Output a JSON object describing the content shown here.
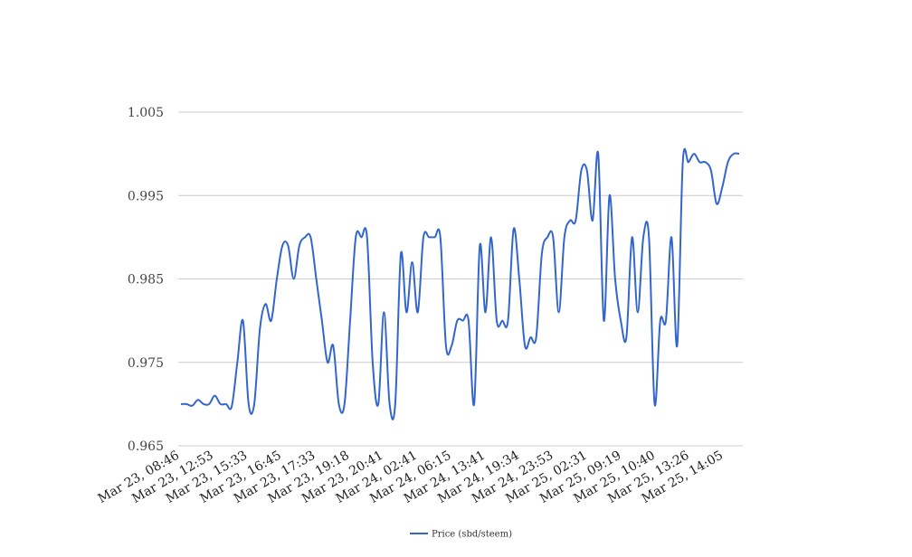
{
  "chart_data": {
    "type": "line",
    "title": "",
    "xlabel": "",
    "ylabel": "",
    "ylim": [
      0.965,
      1.005
    ],
    "yticks": [
      "0.965",
      "0.975",
      "0.985",
      "0.995",
      "1.005"
    ],
    "grid": true,
    "legend_position": "bottom-center",
    "x_tick_labels": [
      "Mar 23, 08:46",
      "Mar 23, 12:53",
      "Mar 23, 15:33",
      "Mar 23, 16:45",
      "Mar 23, 17:33",
      "Mar 23, 19:18",
      "Mar 23, 20:41",
      "Mar 24, 02:41",
      "Mar 24, 06:15",
      "Mar 24, 13:41",
      "Mar 24, 19:34",
      "Mar 24, 23:53",
      "Mar 25, 02:31",
      "Mar 25, 09:19",
      "Mar 25, 10:40",
      "Mar 25, 13:26",
      "Mar 25, 14:05"
    ],
    "series": [
      {
        "name": "Price (sbd/steem)",
        "color": "#3366cc",
        "values": [
          0.97,
          0.97,
          0.9698,
          0.9705,
          0.97,
          0.97,
          0.971,
          0.97,
          0.97,
          0.9697,
          0.975,
          0.98,
          0.97,
          0.97,
          0.979,
          0.982,
          0.98,
          0.985,
          0.989,
          0.989,
          0.985,
          0.989,
          0.99,
          0.99,
          0.985,
          0.98,
          0.975,
          0.977,
          0.97,
          0.97,
          0.98,
          0.99,
          0.99,
          0.99,
          0.975,
          0.97,
          0.981,
          0.97,
          0.97,
          0.988,
          0.981,
          0.987,
          0.981,
          0.99,
          0.99,
          0.99,
          0.99,
          0.977,
          0.977,
          0.98,
          0.98,
          0.98,
          0.97,
          0.989,
          0.981,
          0.99,
          0.98,
          0.98,
          0.98,
          0.991,
          0.985,
          0.977,
          0.978,
          0.978,
          0.988,
          0.99,
          0.99,
          0.981,
          0.99,
          0.992,
          0.992,
          0.998,
          0.998,
          0.992,
          1.0,
          0.98,
          0.995,
          0.985,
          0.98,
          0.978,
          0.99,
          0.981,
          0.99,
          0.99,
          0.97,
          0.98,
          0.98,
          0.99,
          0.977,
          0.999,
          0.999,
          1.0,
          0.999,
          0.999,
          0.998,
          0.994,
          0.996,
          0.999,
          1.0,
          1.0
        ]
      }
    ]
  }
}
